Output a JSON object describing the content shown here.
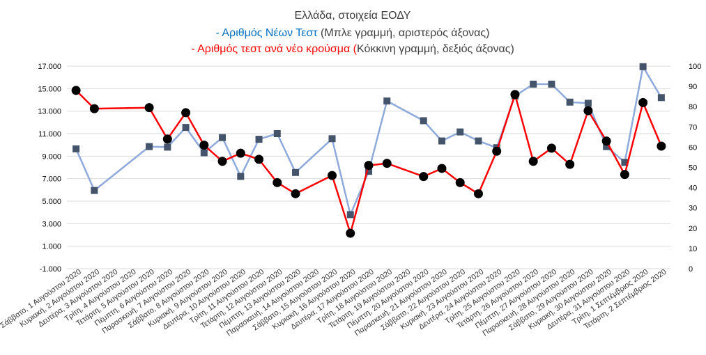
{
  "title": {
    "line1": "Ελλάδα, στοιχεία ΕΟΔΥ",
    "line2_prefix": "- ",
    "line2_highlight": "Αριθμός Νέων Τεστ",
    "line2_rest": " (Μπλε γραμμή, αριστερός άξονας)",
    "line3_prefix": "- ",
    "line3_highlight": "Αριθμός τεστ ανά νέο κρούσμα (",
    "line3_rest": "Κόκκινη γραμμή, δεξιός άξονας)"
  },
  "colors": {
    "blue_line": "#8EA9DB",
    "blue_marker": "#44546A",
    "red_line": "#FF0000",
    "red_marker": "#000000",
    "title_blue": "#0070C0",
    "title_red": "#FF0000",
    "grid": "#D9D9D9"
  },
  "chart_data": {
    "type": "line",
    "categories": [
      "Σάββατο, 1 Αυγούστου 2020",
      "Κυριακή, 2 Αυγούστου 2020",
      "Δευτέρα, 3 Αυγούστου 2020",
      "Τρίτη, 4 Αυγούστου 2020",
      "Τετάρτη, 5 Αυγούστου 2020",
      "Πέμπτη, 6 Αυγούστου 2020",
      "Παρασκευή, 7 Αυγούστου 2020",
      "Σάββατο, 8 Αυγούστου 2020",
      "Κυριακή, 9 Αυγούστου 2020",
      "Δευτέρα, 10 Αυγούστου 2020",
      "Τρίτη, 11 Αυγούστου 2020",
      "Τετάρτη, 12 Αυγούστου 2020",
      "Πέμπτη, 13 Αυγούστου 2020",
      "Παρασκευή, 14 Αυγούστου 2020",
      "Σάββατο, 15 Αυγούστου 2020",
      "Κυριακή, 16 Αυγούστου 2020",
      "Δευτέρα, 17 Αυγούστου 2020",
      "Τρίτη, 18 Αυγούστου 2020",
      "Τετάρτη, 19 Αυγούστου 2020",
      "Πέμπτη, 20 Αυγούστου 2020",
      "Παρασκευή, 21 Αυγούστου 2020",
      "Σάββατο, 22 Αυγούστου 2020",
      "Κυριακή, 23 Αυγούστου 2020",
      "Δευτέρα, 24 Αυγούστου 2020",
      "Τρίτη, 25 Αυγούστου 2020",
      "Τετάρτη, 26 Αυγούστου 2020",
      "Πέμπτη, 27 Αυγούστου 2020",
      "Παρασκευή, 28 Αυγούστου 2020",
      "Σάββατο, 29 Αυγούστου 2020",
      "Κυριακή, 30 Αυγούστου 2020",
      "Δευτέρα, 31 Αυγούστου 2020",
      "Τρίτη, 1 Σεπτέμβριος 2020",
      "Τετάρτη, 2 Σεπτέμβριος 2020"
    ],
    "series": [
      {
        "axis": "left",
        "values": [
          9650,
          5950,
          null,
          null,
          9850,
          9800,
          11550,
          9300,
          10650,
          7200,
          10500,
          11000,
          7550,
          null,
          10550,
          3800,
          7650,
          13900,
          null,
          12150,
          10350,
          11150,
          10350,
          9750,
          14350,
          15400,
          15400,
          13800,
          13700,
          9850,
          8450,
          16950,
          14200
        ]
      },
      {
        "axis": "right",
        "values": [
          88,
          79,
          null,
          null,
          79.5,
          64,
          77,
          61,
          53,
          57,
          54,
          42.5,
          37,
          null,
          46,
          17.5,
          51,
          52,
          null,
          45.5,
          49.5,
          42.5,
          37,
          58,
          86,
          53,
          59.5,
          51.5,
          78,
          63,
          46.5,
          82,
          60.5
        ]
      }
    ],
    "y_left": {
      "min": -1000,
      "max": 17000,
      "ticks": [
        "-1.000",
        "1.000",
        "3.000",
        "5.000",
        "7.000",
        "9.000",
        "11.000",
        "13.000",
        "15.000",
        "17.000"
      ]
    },
    "y_right": {
      "min": 0,
      "max": 100,
      "ticks": [
        "0",
        "10",
        "20",
        "30",
        "40",
        "50",
        "60",
        "70",
        "80",
        "90",
        "100"
      ]
    },
    "grid": true
  }
}
